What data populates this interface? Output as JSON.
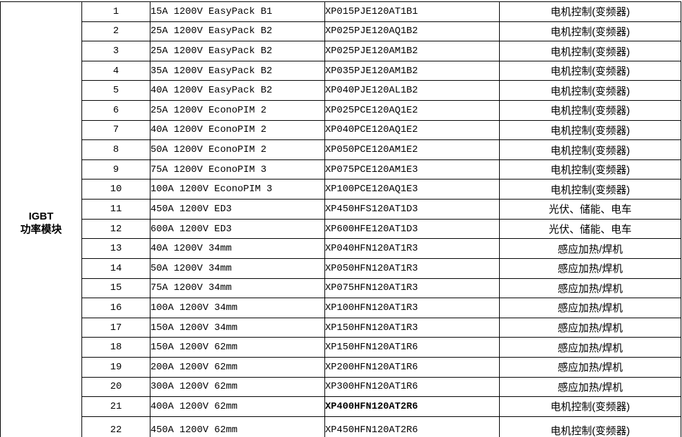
{
  "page": {
    "background_color": "#ffffff",
    "border_color": "#000000",
    "text_color": "#000000"
  },
  "table": {
    "group": {
      "line1": "IGBT",
      "line2": "功率模块"
    },
    "rows": [
      {
        "no": "1",
        "spec": "15A 1200V EasyPack B1",
        "part": "XP015PJE120AT1B1",
        "app": "电机控制(变频器)"
      },
      {
        "no": "2",
        "spec": "25A 1200V EasyPack B2",
        "part": "XP025PJE120AQ1B2",
        "app": "电机控制(变频器)"
      },
      {
        "no": "3",
        "spec": "25A 1200V EasyPack B2",
        "part": "XP025PJE120AM1B2",
        "app": "电机控制(变频器)"
      },
      {
        "no": "4",
        "spec": "35A 1200V EasyPack B2",
        "part": "XP035PJE120AM1B2",
        "app": "电机控制(变频器)"
      },
      {
        "no": "5",
        "spec": "40A 1200V EasyPack B2",
        "part": "XP040PJE120AL1B2",
        "app": "电机控制(变频器)"
      },
      {
        "no": "6",
        "spec": "25A 1200V EconoPIM 2",
        "part": "XP025PCE120AQ1E2",
        "app": "电机控制(变频器)"
      },
      {
        "no": "7",
        "spec": "40A 1200V EconoPIM 2",
        "part": "XP040PCE120AQ1E2",
        "app": "电机控制(变频器)"
      },
      {
        "no": "8",
        "spec": "50A 1200V EconoPIM 2",
        "part": "XP050PCE120AM1E2",
        "app": "电机控制(变频器)"
      },
      {
        "no": "9",
        "spec": "75A 1200V EconoPIM 3",
        "part": "XP075PCE120AM1E3",
        "app": "电机控制(变频器)"
      },
      {
        "no": "10",
        "spec": "100A 1200V EconoPIM 3",
        "part": "XP100PCE120AQ1E3",
        "app": "电机控制(变频器)"
      },
      {
        "no": "11",
        "spec": "450A 1200V ED3",
        "part": "XP450HFS120AT1D3",
        "app": "光伏、储能、电车"
      },
      {
        "no": "12",
        "spec": "600A 1200V ED3",
        "part": "XP600HFE120AT1D3",
        "app": "光伏、储能、电车"
      },
      {
        "no": "13",
        "spec": "40A 1200V 34mm",
        "part": "XP040HFN120AT1R3",
        "app": "感应加热/焊机"
      },
      {
        "no": "14",
        "spec": "50A 1200V 34mm",
        "part": "XP050HFN120AT1R3",
        "app": "感应加热/焊机"
      },
      {
        "no": "15",
        "spec": "75A 1200V 34mm",
        "part": "XP075HFN120AT1R3",
        "app": "感应加热/焊机"
      },
      {
        "no": "16",
        "spec": "100A 1200V 34mm",
        "part": "XP100HFN120AT1R3",
        "app": "感应加热/焊机"
      },
      {
        "no": "17",
        "spec": "150A 1200V 34mm",
        "part": "XP150HFN120AT1R3",
        "app": "感应加热/焊机"
      },
      {
        "no": "18",
        "spec": "150A 1200V 62mm",
        "part": "XP150HFN120AT1R6",
        "app": "感应加热/焊机"
      },
      {
        "no": "19",
        "spec": "200A 1200V 62mm",
        "part": "XP200HFN120AT1R6",
        "app": "感应加热/焊机"
      },
      {
        "no": "20",
        "spec": "300A 1200V 62mm",
        "part": "XP300HFN120AT1R6",
        "app": "感应加热/焊机"
      },
      {
        "no": "21",
        "spec": "400A 1200V 62mm",
        "part": "XP400HFN120AT2R6",
        "part_bold": true,
        "app": "电机控制(变频器)"
      },
      {
        "no": "22",
        "spec": "450A 1200V 62mm",
        "part": "XP450HFN120AT2R6",
        "app": "电机控制(变频器)"
      }
    ]
  }
}
